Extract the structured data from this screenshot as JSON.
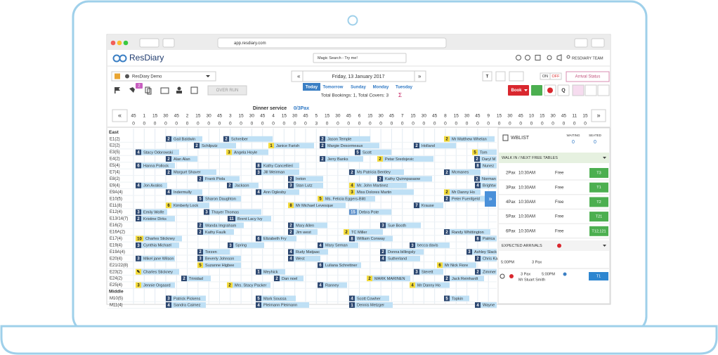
{
  "browser": {
    "url": "app.resdiary.com"
  },
  "header": {
    "logo": "ResDiary",
    "search_placeholder": "Magic Search - Try me!",
    "user": "RESDIARY TEAM"
  },
  "toolbar": {
    "restaurant": "ResDiary Demo",
    "date": "Friday, 13 January 2017",
    "prev": "«",
    "next": "»",
    "quick_dates": [
      "Today",
      "Tomorrow",
      "Sunday",
      "Monday",
      "Tuesday"
    ],
    "totals": "Total Bookings: 1, Total Covers: 3",
    "sigma": "Σ",
    "over_run": "OVER RUN",
    "badge": "2",
    "on": "ON",
    "off": "OFF",
    "arrival_status": "Arrival Status",
    "book": "Book",
    "search": "Q"
  },
  "service": {
    "name": "Dinner service",
    "pax": "0/3Pax"
  },
  "timeline": {
    "prev": "«",
    "next": "»",
    "times": [
      45,
      1,
      15,
      30,
      45,
      2,
      15,
      30,
      45,
      3,
      15,
      30,
      45,
      4,
      15,
      30,
      45,
      5,
      15,
      30,
      45,
      6,
      15,
      30,
      45,
      7,
      15,
      30,
      45,
      8,
      15,
      30,
      45,
      9,
      15,
      30,
      45,
      10,
      15,
      30,
      45,
      11,
      15
    ],
    "covers": [
      0,
      0,
      0,
      0,
      0,
      0,
      0,
      0,
      0,
      0,
      0,
      0,
      0,
      0,
      0,
      0,
      0,
      3,
      0,
      0,
      0,
      0,
      0,
      0,
      0,
      0,
      0,
      0,
      0,
      0,
      0,
      0,
      0,
      0,
      0,
      0,
      0,
      0,
      0,
      0,
      0,
      0,
      0
    ]
  },
  "sections": [
    {
      "name": "East",
      "tables": [
        {
          "label": "E1(2)",
          "bookings": [
            {
              "name": "Gail Baldwin",
              "covers": 2
            },
            {
              "name": "Schreiber",
              "covers": 2
            },
            {
              "name": "Jason Temple",
              "covers": 2
            },
            {
              "name": "Mr Matthew Whelan",
              "covers": 2,
              "color": "#f5dc3c"
            }
          ]
        },
        {
          "label": "E2(2)",
          "bookings": [
            {
              "name": "Schilputz",
              "covers": 2
            },
            {
              "name": "Janice Farish",
              "covers": 1,
              "color": "#f5dc3c"
            },
            {
              "name": "Margie Desormeaux",
              "covers": 2
            },
            {
              "name": "Holland",
              "covers": 2
            }
          ]
        },
        {
          "label": "E3(5)",
          "bookings": [
            {
              "name": "Stacy Odorowski",
              "covers": 4
            },
            {
              "name": "Angela Hoyle",
              "covers": 3,
              "color": "#f5dc3c"
            },
            {
              "name": "Scott",
              "covers": 5
            },
            {
              "name": "Tom",
              "covers": 5,
              "color": "#f5dc3c"
            }
          ]
        },
        {
          "label": "E4(2)",
          "bookings": [
            {
              "name": "Alan Alan",
              "covers": 2
            },
            {
              "name": "Jerry Banks",
              "covers": 2
            },
            {
              "name": "Petar Sredojevic",
              "covers": 2,
              "color": "#f5dc3c"
            },
            {
              "name": "Daryl M",
              "covers": 2
            }
          ]
        },
        {
          "label": "E5(4)",
          "bookings": [
            {
              "name": "Hanna Pollock",
              "covers": 6
            },
            {
              "name": "Kathy Cancellieri",
              "covers": 8
            },
            {
              "name": "Nunez",
              "covers": 8
            }
          ]
        },
        {
          "label": "E7(4)",
          "bookings": [
            {
              "name": "Margurt Shaver",
              "covers": 2
            },
            {
              "name": "Jill Weirman",
              "covers": 3
            },
            {
              "name": "Ms Patricia Bentley",
              "covers": 2
            },
            {
              "name": "Mcmanes",
              "covers": 2
            }
          ]
        },
        {
          "label": "E8(2)",
          "bookings": [
            {
              "name": "Frank Piola",
              "covers": 2
            },
            {
              "name": "Ireton",
              "covers": 2
            },
            {
              "name": "Kathy Quinnpasaow",
              "covers": 2
            },
            {
              "name": "Norman",
              "covers": 2
            }
          ]
        },
        {
          "label": "E9(4)",
          "bookings": [
            {
              "name": "Jon Avalos",
              "covers": 4
            },
            {
              "name": "Jackson",
              "covers": 2
            },
            {
              "name": "Stan Lutz",
              "covers": 3
            },
            {
              "name": "Mr. John Martinez",
              "covers": 4,
              "color": "#f5dc3c"
            },
            {
              "name": "Brightw",
              "covers": 4
            }
          ]
        },
        {
          "label": "E9A(4)",
          "bookings": [
            {
              "name": "Indermully",
              "covers": 4
            },
            {
              "name": "Ann Oglesby",
              "covers": 4
            },
            {
              "name": "Miss Dolores Martin",
              "covers": 3,
              "color": "#f5dc3c"
            },
            {
              "name": "Mr Danny Ho",
              "covers": 2,
              "color": "#f5dc3c"
            }
          ]
        },
        {
          "label": "E10(5)",
          "bookings": [
            {
              "name": "Sharon Daughton",
              "covers": 5
            },
            {
              "name": "Ms. Felicia Eggers-Blitt",
              "covers": 5,
              "color": "#f5dc3c"
            },
            {
              "name": "Peter Fuenfgeld",
              "covers": 2
            }
          ]
        },
        {
          "label": "E11(8)",
          "bookings": [
            {
              "name": "Kimberly Lock",
              "covers": 6,
              "color": "#f5dc3c"
            },
            {
              "name": "Mr Michael Levesque",
              "covers": 8,
              "color": "#f5dc3c"
            },
            {
              "name": "Krause",
              "covers": 7
            }
          ]
        },
        {
          "label": "E12(4)",
          "bookings": [
            {
              "name": "Emily Wolfe",
              "covers": 3
            },
            {
              "name": "Thayer Thomas",
              "covers": 3
            },
            {
              "name": "Debra Pote",
              "covers": 15,
              "color": "#5b8fc9"
            }
          ]
        },
        {
          "label": "E13/14(7)",
          "bookings": [
            {
              "name": "Kristine Dirks",
              "covers": 2
            },
            {
              "name": "Brent Lacy Ivy",
              "covers": 11
            }
          ]
        },
        {
          "label": "E16(2)",
          "bookings": [
            {
              "name": "Wanda Imgraham",
              "covers": 2
            },
            {
              "name": "Mary Allen",
              "covers": 2
            },
            {
              "name": "Sue Booth",
              "covers": 3
            }
          ]
        },
        {
          "label": "E16A(2)",
          "bookings": [
            {
              "name": "Kathy Faulk",
              "covers": 2
            },
            {
              "name": "Jim west",
              "covers": 2
            },
            {
              "name": "TC Miller",
              "covers": 2,
              "color": "#f5dc3c"
            },
            {
              "name": "Randy Whittington",
              "covers": 2
            }
          ]
        },
        {
          "label": "E17(4)",
          "bookings": [
            {
              "name": "Charles Stickney",
              "covers": 10,
              "color": "#f5dc3c"
            },
            {
              "name": "Elizabeth Fry",
              "covers": 6
            },
            {
              "name": "William Conway",
              "covers": 8
            },
            {
              "name": "Patrica",
              "covers": 8
            }
          ]
        },
        {
          "label": "E19(4)",
          "bookings": [
            {
              "name": "Cynthia Michael",
              "covers": 3
            },
            {
              "name": "Spring",
              "covers": 3
            },
            {
              "name": "Mary Seman",
              "covers": 4
            },
            {
              "name": "becca davis",
              "covers": 3
            }
          ]
        },
        {
          "label": "E19A(4)",
          "bookings": [
            {
              "name": "Torzen",
              "covers": 2
            },
            {
              "name": "Rudy Matjaac",
              "covers": 4
            },
            {
              "name": "Donna billingsly",
              "covers": 2
            },
            {
              "name": "Ashley Slack",
              "covers": 3
            }
          ]
        },
        {
          "label": "E20(4)",
          "bookings": [
            {
              "name": "Mikel jane Wilson",
              "covers": 3
            },
            {
              "name": "Beverly Johnson",
              "covers": 3
            },
            {
              "name": "West",
              "covers": 4
            },
            {
              "name": "Sutherland",
              "covers": 4
            },
            {
              "name": "Chris Ka",
              "covers": 2
            }
          ]
        },
        {
          "label": "E21/22(8)",
          "bookings": [
            {
              "name": "Suzanne Higbee",
              "covers": 5,
              "color": "#f5dc3c"
            },
            {
              "name": "Luliana Schrettner",
              "covers": 6
            },
            {
              "name": "Mr Nick Fiore",
              "covers": 6,
              "color": "#f5dc3c"
            }
          ]
        },
        {
          "label": "E23(2)",
          "bookings": [
            {
              "name": "Charles Stickney",
              "covers": "✎",
              "color": "#f5dc3c"
            },
            {
              "name": "Meyhick",
              "covers": 1
            },
            {
              "name": "Sterett",
              "covers": 3
            },
            {
              "name": "Zimmer",
              "covers": 2
            }
          ]
        },
        {
          "label": "E24(2)",
          "bookings": [
            {
              "name": "Trinidad",
              "covers": 2
            },
            {
              "name": "Dan noel",
              "covers": 2
            },
            {
              "name": "MARK MARINEN",
              "covers": 2,
              "color": "#f5dc3c"
            },
            {
              "name": "Jack Reinhardt",
              "covers": 2
            }
          ]
        },
        {
          "label": "E25(4)",
          "bookings": [
            {
              "name": "Jennie Orgaard",
              "covers": 3,
              "color": "#f5dc3c"
            },
            {
              "name": "Mrs. Stacy Packer",
              "covers": 2,
              "color": "#f5dc3c"
            },
            {
              "name": "Ranney",
              "covers": 4
            },
            {
              "name": "Mr Danny Ho",
              "covers": 4,
              "color": "#f5dc3c"
            }
          ]
        }
      ]
    },
    {
      "name": "Middle",
      "tables": [
        {
          "label": "M10(5)",
          "bookings": [
            {
              "name": "Patrick Pickens",
              "covers": 3
            },
            {
              "name": "Mark Soussa",
              "covers": 5
            },
            {
              "name": "Scott Cowher",
              "covers": 4
            },
            {
              "name": "Topkin",
              "covers": 5
            }
          ]
        },
        {
          "label": "M11(4)",
          "bookings": [
            {
              "name": "Sandra Caimez",
              "covers": 4
            },
            {
              "name": "Pleimann Pleimann",
              "covers": 4
            },
            {
              "name": "Dennis Metzger",
              "covers": 1
            },
            {
              "name": "Wayne",
              "covers": 4
            }
          ]
        }
      ]
    }
  ],
  "waitlist": {
    "title": "WBLIST",
    "waiting_label": "WAITING",
    "waiting": 0,
    "seated_label": "SEATED",
    "seated": 0,
    "walkin_title": "WALK IN / NEXT FREE TABLES",
    "free_tables": [
      {
        "pax": "2Pax",
        "time": "10:30AM",
        "status": "Free",
        "table": "T3"
      },
      {
        "pax": "3Pax",
        "time": "10:30AM",
        "status": "Free",
        "table": "T1"
      },
      {
        "pax": "4Pax",
        "time": "10:30AM",
        "status": "Free",
        "table": "T2"
      },
      {
        "pax": "5Pax",
        "time": "10:30AM",
        "status": "Free",
        "table": "T21"
      },
      {
        "pax": "6Pax",
        "time": "10:30AM",
        "status": "Free",
        "table": "T12,121"
      }
    ],
    "arrivals_title": "EXPECTED ARRIVALS",
    "arrival_time": "5:00PM",
    "arrival_pax": "3 Pax",
    "arrival": {
      "pax": "3 Pax",
      "time": "5:00PM",
      "name": "Mr Stuart Smith",
      "table": "T1"
    }
  }
}
